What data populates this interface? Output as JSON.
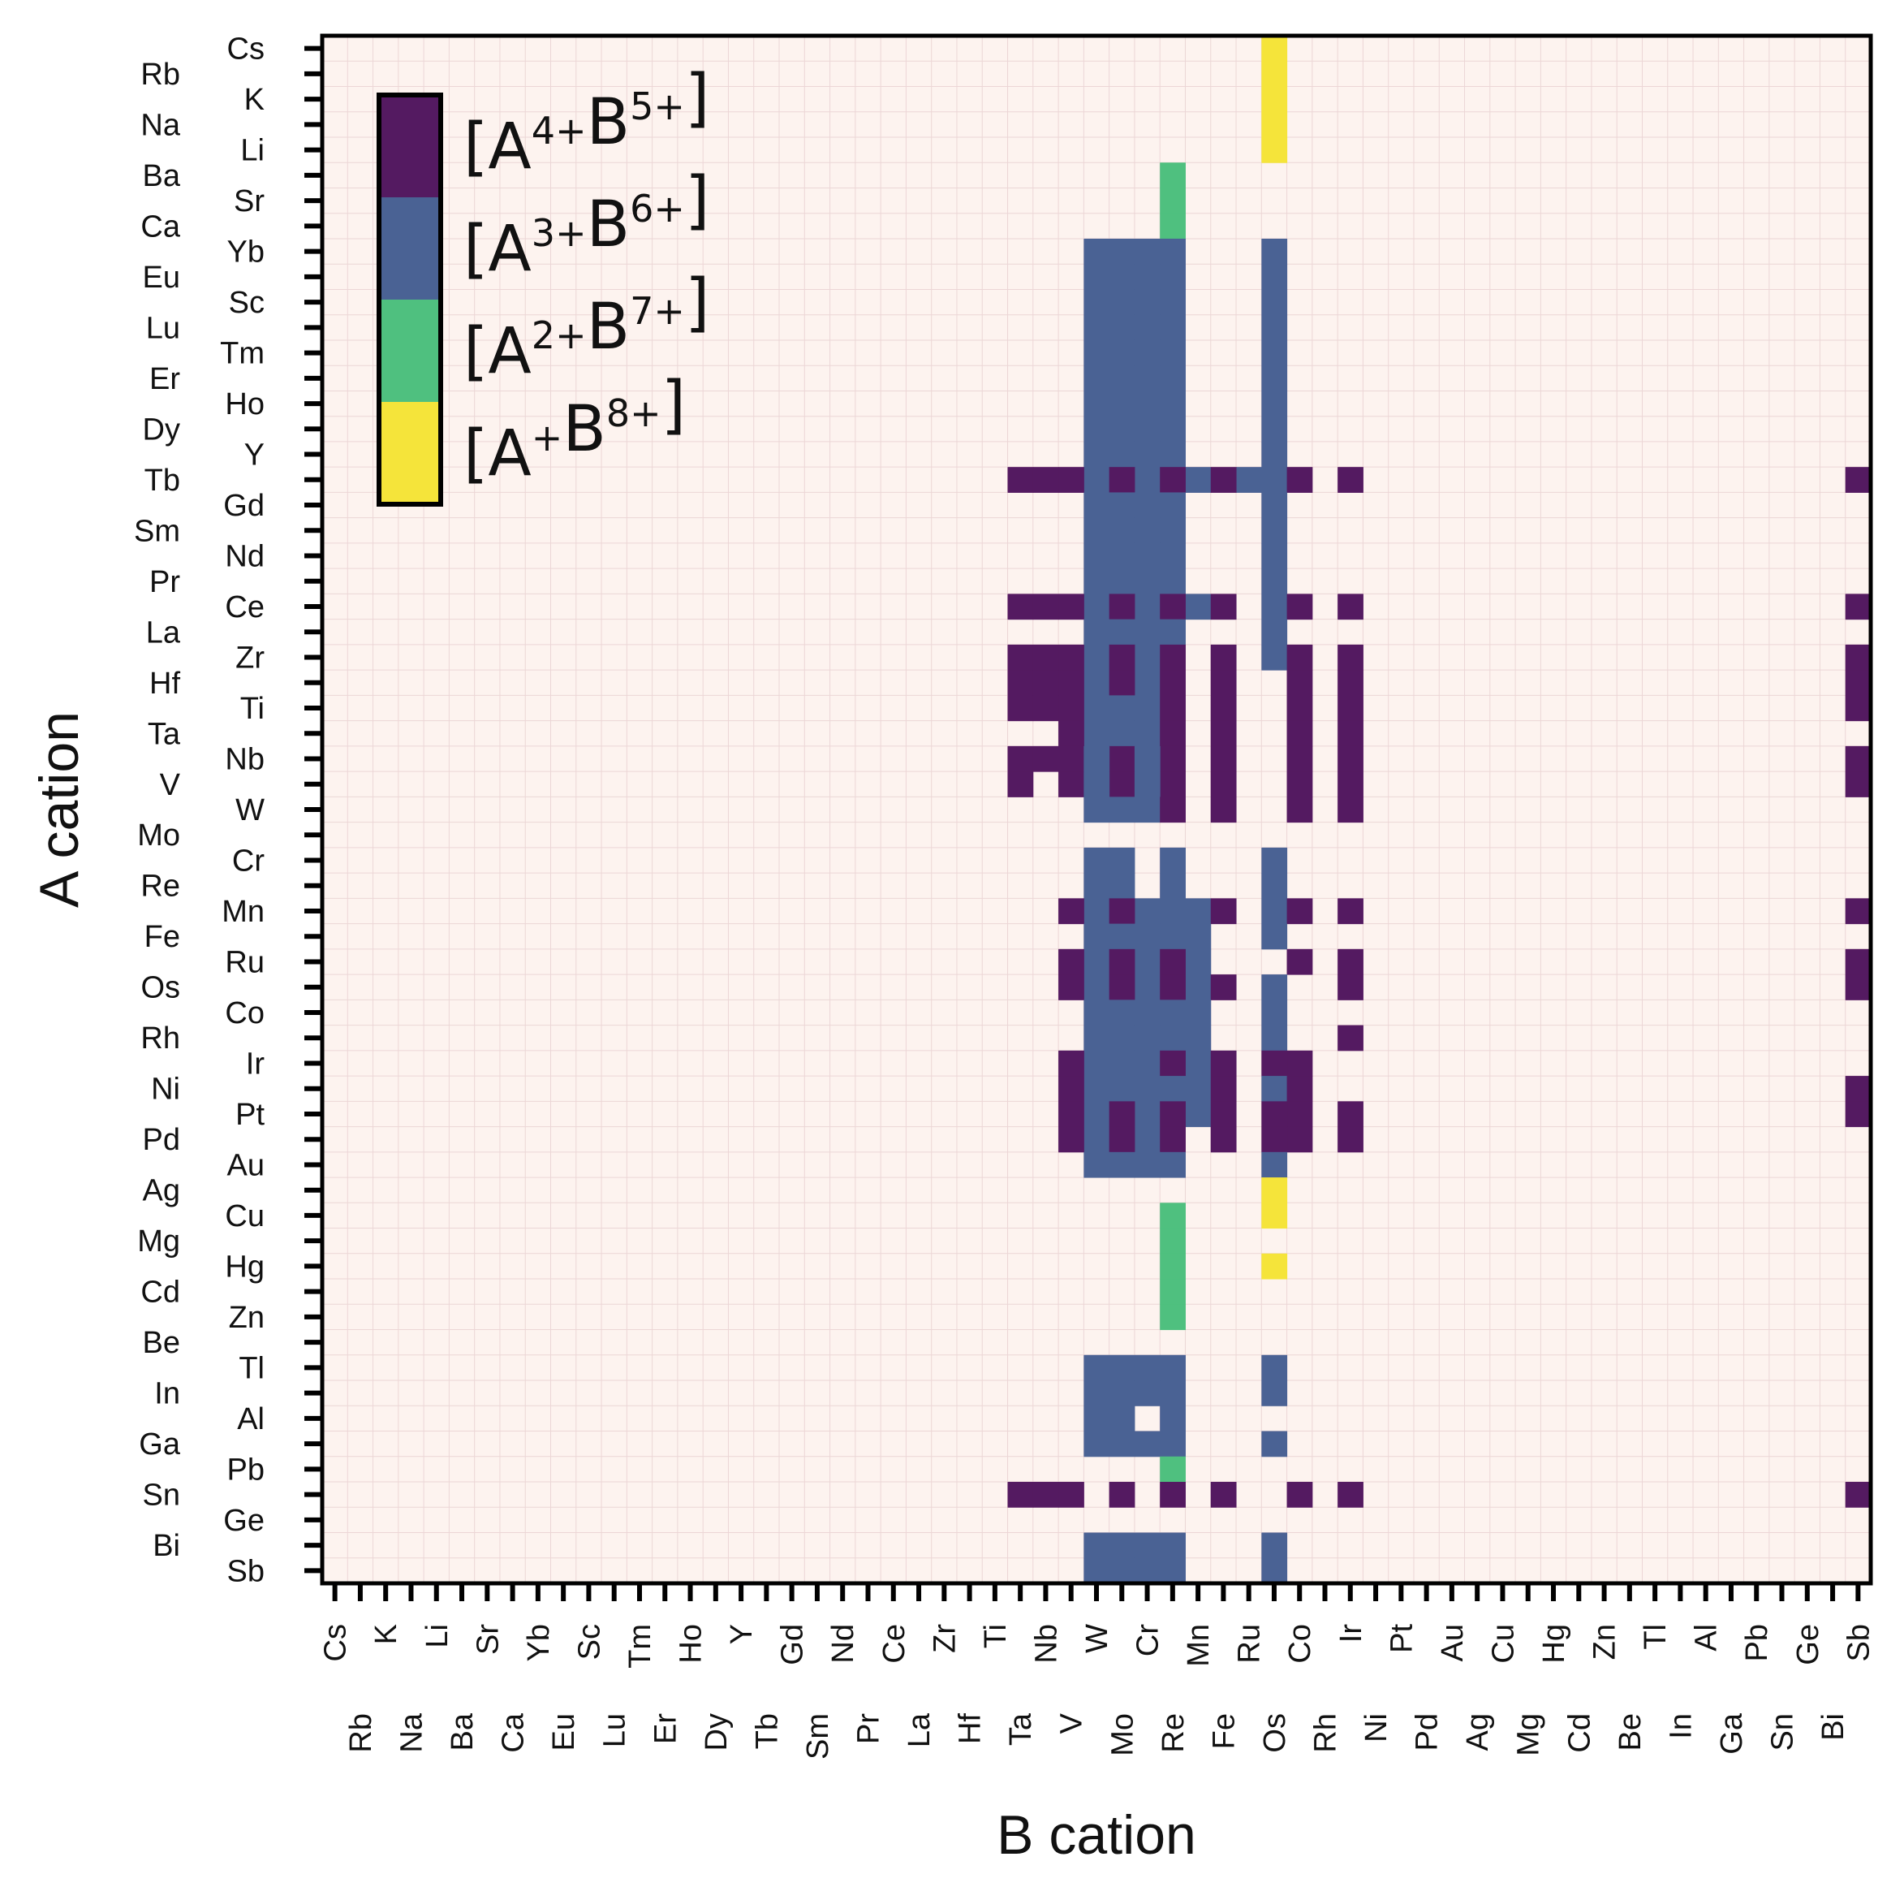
{
  "chart_data": {
    "type": "heatmap",
    "xlabel": "B cation",
    "ylabel": "A cation",
    "elements": [
      "Cs",
      "Rb",
      "K",
      "Na",
      "Li",
      "Ba",
      "Sr",
      "Ca",
      "Yb",
      "Eu",
      "Sc",
      "Lu",
      "Tm",
      "Er",
      "Ho",
      "Dy",
      "Y",
      "Tb",
      "Gd",
      "Sm",
      "Nd",
      "Pr",
      "Ce",
      "La",
      "Zr",
      "Hf",
      "Ti",
      "Ta",
      "Nb",
      "V",
      "W",
      "Mo",
      "Cr",
      "Re",
      "Mn",
      "Fe",
      "Ru",
      "Os",
      "Co",
      "Rh",
      "Ir",
      "Ni",
      "Pt",
      "Pd",
      "Au",
      "Ag",
      "Cu",
      "Mg",
      "Hg",
      "Cd",
      "Zn",
      "Be",
      "Tl",
      "In",
      "Al",
      "Ga",
      "Pb",
      "Sn",
      "Ge",
      "Bi",
      "Sb"
    ],
    "categories": [
      {
        "id": 1,
        "label": "[A4+B5+]",
        "base": "[A",
        "a_sup": "4+",
        "mid": "B",
        "b_sup": "5+",
        "close": "]",
        "color": "#541a61"
      },
      {
        "id": 2,
        "label": "[A3+B6+]",
        "base": "[A",
        "a_sup": "3+",
        "mid": "B",
        "b_sup": "6+",
        "close": "]",
        "color": "#4a6294"
      },
      {
        "id": 3,
        "label": "[A2+B7+]",
        "base": "[A",
        "a_sup": "2+",
        "mid": "B",
        "b_sup": "7+",
        "close": "]",
        "color": "#4fc07f"
      },
      {
        "id": 4,
        "label": "[A+B8+]",
        "base": "[A",
        "a_sup": "+",
        "mid": "B",
        "b_sup": "8+",
        "close": "]",
        "color": "#f5e43a"
      }
    ],
    "background_color": "#fdf3ef",
    "cells": [
      {
        "a": "Cs",
        "b": [
          "Os"
        ],
        "v": 4
      },
      {
        "a": "Rb",
        "b": [
          "Os"
        ],
        "v": 4
      },
      {
        "a": "K",
        "b": [
          "Os"
        ],
        "v": 4
      },
      {
        "a": "Na",
        "b": [
          "Os"
        ],
        "v": 4
      },
      {
        "a": "Li",
        "b": [
          "Os"
        ],
        "v": 4
      },
      {
        "a": "Ba",
        "b": [
          "Re"
        ],
        "v": 3
      },
      {
        "a": "Sr",
        "b": [
          "Re"
        ],
        "v": 3
      },
      {
        "a": "Ca",
        "b": [
          "Re"
        ],
        "v": 3
      },
      {
        "a": "Yb",
        "b": [
          "W",
          "Mo",
          "Cr",
          "Re",
          "Os"
        ],
        "v": 2
      },
      {
        "a": "Eu",
        "b": [
          "W",
          "Mo",
          "Cr",
          "Re",
          "Os"
        ],
        "v": 2
      },
      {
        "a": "Sc",
        "b": [
          "W",
          "Mo",
          "Cr",
          "Re",
          "Os"
        ],
        "v": 2
      },
      {
        "a": "Lu",
        "b": [
          "W",
          "Mo",
          "Cr",
          "Re",
          "Os"
        ],
        "v": 2
      },
      {
        "a": "Tm",
        "b": [
          "W",
          "Mo",
          "Cr",
          "Re",
          "Os"
        ],
        "v": 2
      },
      {
        "a": "Er",
        "b": [
          "W",
          "Mo",
          "Cr",
          "Re",
          "Os"
        ],
        "v": 2
      },
      {
        "a": "Ho",
        "b": [
          "W",
          "Mo",
          "Cr",
          "Re",
          "Os"
        ],
        "v": 2
      },
      {
        "a": "Dy",
        "b": [
          "W",
          "Mo",
          "Cr",
          "Re",
          "Os"
        ],
        "v": 2
      },
      {
        "a": "Y",
        "b": [
          "W",
          "Mo",
          "Cr",
          "Re",
          "Os"
        ],
        "v": 2
      },
      {
        "a": "Tb",
        "b": [
          "W",
          "Cr",
          "Mn",
          "Ru",
          "Os"
        ],
        "v": 2
      },
      {
        "a": "Tb",
        "b": [
          "Ta",
          "Nb",
          "V",
          "Mo",
          "Re",
          "Fe",
          "Co",
          "Ir",
          "Sb"
        ],
        "v": 1
      },
      {
        "a": "Gd",
        "b": [
          "W",
          "Mo",
          "Cr",
          "Re",
          "Os"
        ],
        "v": 2
      },
      {
        "a": "Sm",
        "b": [
          "W",
          "Mo",
          "Cr",
          "Re",
          "Os"
        ],
        "v": 2
      },
      {
        "a": "Nd",
        "b": [
          "W",
          "Mo",
          "Cr",
          "Re",
          "Os"
        ],
        "v": 2
      },
      {
        "a": "Pr",
        "b": [
          "W",
          "Mo",
          "Cr",
          "Re",
          "Os"
        ],
        "v": 2
      },
      {
        "a": "Ce",
        "b": [
          "W",
          "Cr",
          "Mn",
          "Os"
        ],
        "v": 2
      },
      {
        "a": "Ce",
        "b": [
          "Ta",
          "Nb",
          "V",
          "Mo",
          "Re",
          "Fe",
          "Co",
          "Ir",
          "Sb"
        ],
        "v": 1
      },
      {
        "a": "La",
        "b": [
          "W",
          "Mo",
          "Cr",
          "Re",
          "Os"
        ],
        "v": 2
      },
      {
        "a": "Zr",
        "b": [
          "W",
          "Cr",
          "Os"
        ],
        "v": 2
      },
      {
        "a": "Zr",
        "b": [
          "Ta",
          "Nb",
          "V",
          "Mo",
          "Re",
          "Fe",
          "Co",
          "Ir",
          "Sb"
        ],
        "v": 1
      },
      {
        "a": "Hf",
        "b": [
          "W",
          "Cr"
        ],
        "v": 2
      },
      {
        "a": "Hf",
        "b": [
          "Ta",
          "Nb",
          "V",
          "Mo",
          "Re",
          "Fe",
          "Co",
          "Ir",
          "Sb"
        ],
        "v": 1
      },
      {
        "a": "Ti",
        "b": [
          "W",
          "Mo",
          "Cr"
        ],
        "v": 2
      },
      {
        "a": "Ti",
        "b": [
          "Ta",
          "Nb",
          "V",
          "Re",
          "Fe",
          "Co",
          "Ir",
          "Sb"
        ],
        "v": 1
      },
      {
        "a": "Ta",
        "b": [
          "W",
          "Mo",
          "Cr"
        ],
        "v": 2
      },
      {
        "a": "Ta",
        "b": [
          "V",
          "Re",
          "Fe",
          "Co",
          "Ir"
        ],
        "v": 1
      },
      {
        "a": "Nb",
        "b": [
          "Ta",
          "V",
          "Nb",
          "Mo",
          "Re",
          "Fe",
          "Co",
          "Ir",
          "Sb"
        ],
        "v": 1
      },
      {
        "a": "Nb",
        "b": [
          "W",
          "Cr"
        ],
        "v": 2
      },
      {
        "a": "V",
        "b": [
          "Ta",
          "V",
          "Mo",
          "Re",
          "Fe",
          "Co",
          "Ir",
          "Sb"
        ],
        "v": 1
      },
      {
        "a": "V",
        "b": [
          "W",
          "Cr"
        ],
        "v": 2
      },
      {
        "a": "W",
        "b": [
          "W",
          "Mo",
          "Cr"
        ],
        "v": 2
      },
      {
        "a": "W",
        "b": [
          "Re",
          "Fe",
          "Co",
          "Ir"
        ],
        "v": 1
      },
      {
        "a": "Re",
        "b": [
          "W",
          "Mo",
          "Re",
          "Os"
        ],
        "v": 2
      },
      {
        "a": "Cr",
        "b": [
          "W",
          "Mo",
          "Re",
          "Os"
        ],
        "v": 2
      },
      {
        "a": "Mn",
        "b": [
          "W",
          "Cr",
          "Re",
          "Mn",
          "Os"
        ],
        "v": 2
      },
      {
        "a": "Mn",
        "b": [
          "V",
          "Mo",
          "Fe",
          "Co",
          "Ir",
          "Sb"
        ],
        "v": 1
      },
      {
        "a": "Fe",
        "b": [
          "W",
          "Mo",
          "Cr",
          "Re",
          "Mn",
          "Os"
        ],
        "v": 2
      },
      {
        "a": "Ru",
        "b": [
          "W",
          "Cr",
          "Mn"
        ],
        "v": 2
      },
      {
        "a": "Ru",
        "b": [
          "V",
          "Mo",
          "Re",
          "Co",
          "Ir",
          "Sb"
        ],
        "v": 1
      },
      {
        "a": "Os",
        "b": [
          "W",
          "Cr",
          "Mn",
          "Os"
        ],
        "v": 2
      },
      {
        "a": "Os",
        "b": [
          "V",
          "Mo",
          "Re",
          "Fe",
          "Ir",
          "Sb"
        ],
        "v": 1
      },
      {
        "a": "Co",
        "b": [
          "W",
          "Mo",
          "Cr",
          "Re",
          "Mn",
          "Os"
        ],
        "v": 2
      },
      {
        "a": "Rh",
        "b": [
          "W",
          "Mo",
          "Cr",
          "Re",
          "Mn",
          "Os"
        ],
        "v": 2
      },
      {
        "a": "Rh",
        "b": [
          "Ir"
        ],
        "v": 1
      },
      {
        "a": "Ir",
        "b": [
          "W",
          "Mo",
          "Cr",
          "Mn"
        ],
        "v": 2
      },
      {
        "a": "Ir",
        "b": [
          "V",
          "Re",
          "Fe",
          "Co",
          "Os"
        ],
        "v": 1
      },
      {
        "a": "Ni",
        "b": [
          "W",
          "Mo",
          "Cr",
          "Re",
          "Mn",
          "Os"
        ],
        "v": 2
      },
      {
        "a": "Ni",
        "b": [
          "V",
          "Fe",
          "Co",
          "Sb"
        ],
        "v": 1
      },
      {
        "a": "Pt",
        "b": [
          "W",
          "Cr",
          "Mn"
        ],
        "v": 2
      },
      {
        "a": "Pt",
        "b": [
          "V",
          "Mo",
          "Re",
          "Fe",
          "Co",
          "Os",
          "Ir",
          "Sb"
        ],
        "v": 1
      },
      {
        "a": "Pd",
        "b": [
          "W",
          "Cr"
        ],
        "v": 2
      },
      {
        "a": "Pd",
        "b": [
          "V",
          "Mo",
          "Re",
          "Fe",
          "Co",
          "Os",
          "Ir"
        ],
        "v": 1
      },
      {
        "a": "Au",
        "b": [
          "W",
          "Mo",
          "Cr",
          "Re",
          "Os"
        ],
        "v": 2
      },
      {
        "a": "Ag",
        "b": [
          "Os"
        ],
        "v": 4
      },
      {
        "a": "Cu",
        "b": [
          "Os"
        ],
        "v": 4
      },
      {
        "a": "Cu",
        "b": [
          "Re"
        ],
        "v": 3
      },
      {
        "a": "Mg",
        "b": [
          "Re"
        ],
        "v": 3
      },
      {
        "a": "Hg",
        "b": [
          "Re"
        ],
        "v": 3
      },
      {
        "a": "Hg",
        "b": [
          "Os"
        ],
        "v": 4
      },
      {
        "a": "Cd",
        "b": [
          "Re"
        ],
        "v": 3
      },
      {
        "a": "Zn",
        "b": [
          "Re"
        ],
        "v": 3
      },
      {
        "a": "Tl",
        "b": [
          "W",
          "Mo",
          "Cr",
          "Re",
          "Os"
        ],
        "v": 2
      },
      {
        "a": "In",
        "b": [
          "W",
          "Mo",
          "Cr",
          "Re",
          "Os"
        ],
        "v": 2
      },
      {
        "a": "Al",
        "b": [
          "W",
          "Mo",
          "Re"
        ],
        "v": 2
      },
      {
        "a": "Ga",
        "b": [
          "W",
          "Mo",
          "Cr",
          "Re",
          "Os"
        ],
        "v": 2
      },
      {
        "a": "Pb",
        "b": [
          "Re"
        ],
        "v": 3
      },
      {
        "a": "Sn",
        "b": [
          "Ta",
          "Nb",
          "V",
          "Mo",
          "Re",
          "Fe",
          "Co",
          "Ir",
          "Sb"
        ],
        "v": 1
      },
      {
        "a": "Bi",
        "b": [
          "W",
          "Mo",
          "Cr",
          "Re",
          "Os"
        ],
        "v": 2
      },
      {
        "a": "Sb",
        "b": [
          "W",
          "Mo",
          "Cr",
          "Re",
          "Os"
        ],
        "v": 2
      }
    ]
  }
}
